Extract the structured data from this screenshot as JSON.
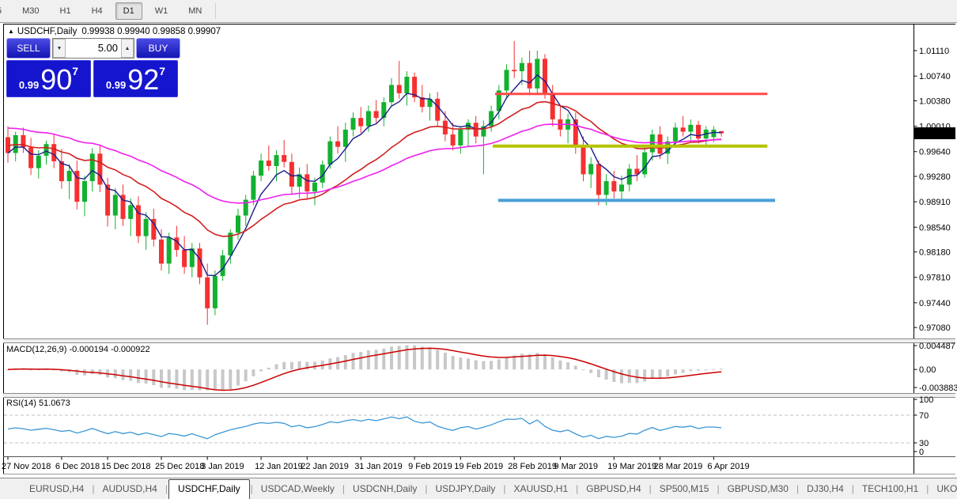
{
  "toolbar": {
    "items": [
      "5",
      "M30",
      "H1",
      "H4",
      "D1",
      "W1",
      "MN"
    ],
    "active": "D1"
  },
  "chart_header": {
    "collapse_icon": "expand-arrow",
    "title": "USDCHF,Daily",
    "values": "0.99938 0.99940 0.99858 0.99907"
  },
  "trade_panel": {
    "sell_label": "SELL",
    "buy_label": "BUY",
    "volume": "5.00",
    "volume_down_icon": "▼",
    "volume_up_icon": "▲",
    "sell_price": {
      "prefix": "0.99",
      "big": "90",
      "sup": "7"
    },
    "buy_price": {
      "prefix": "0.99",
      "big": "92",
      "sup": "7"
    }
  },
  "indicators": {
    "macd": {
      "label": "MACD(12,26,9) -0.000194 -0.000922",
      "axis": [
        "0.004487",
        "0.00",
        "-0.003883"
      ]
    },
    "rsi": {
      "label": "RSI(14) 51.0673",
      "axis": [
        "100",
        "70",
        "30",
        "0"
      ]
    }
  },
  "price_axis": {
    "ticks": [
      "1.01110",
      "1.00740",
      "1.00380",
      "1.00010",
      "0.99640",
      "0.99280",
      "0.98910",
      "0.98540",
      "0.98180",
      "0.97810",
      "0.97440",
      "0.97080"
    ],
    "current": "0.99907"
  },
  "tabs": {
    "items": [
      "EURUSD,H4",
      "AUDUSD,H4",
      "USDCHF,Daily",
      "USDCAD,Weekly",
      "USDCNH,Daily",
      "USDJPY,Daily",
      "XAUUSD,H1",
      "GBPUSD,H4",
      "SP500,M15",
      "GBPUSD,M30",
      "DJ30,H4",
      "TECH100,H1",
      "UKO"
    ],
    "active": "USDCHF,Daily",
    "scroll_left": "◄",
    "scroll_right": "►"
  },
  "chart_data": {
    "type": "candlestick",
    "symbol": "USDCHF",
    "timeframe": "Daily",
    "ohlc_display": {
      "open": 0.99938,
      "high": 0.9994,
      "low": 0.99858,
      "close": 0.99907
    },
    "colors": {
      "bull": "#12b12f",
      "bear": "#f53030",
      "ma_fast": "#1c1c8c",
      "ma_medium": "#d02020",
      "ma_slow": "#f020f0",
      "macd_hist": "#c8c8c8",
      "macd_signal": "#cc0000",
      "rsi_line": "#3a96d6",
      "hline_red": "#ff4a4a",
      "hline_olive": "#b5c400",
      "hline_blue": "#4a9fd8"
    },
    "y_axis_ticks": [
      1.0111,
      1.0074,
      1.0038,
      1.0001,
      0.9964,
      0.9928,
      0.9891,
      0.9854,
      0.9818,
      0.9781,
      0.9744,
      0.9708
    ],
    "current_price": 0.99907,
    "moving_averages": [
      {
        "name": "fast",
        "period": 5,
        "seed_offset": 0.0
      },
      {
        "name": "medium",
        "period": 20,
        "seed_offset": 0.0012
      },
      {
        "name": "slow",
        "period": 42,
        "seed_offset": 0.0038
      }
    ],
    "horizontal_lines": [
      {
        "name": "resistance",
        "price": 1.0048,
        "color_key": "hline_red",
        "width": 3,
        "from_index": 63.5,
        "to_index": 99
      },
      {
        "name": "pivot",
        "price": 0.9972,
        "color_key": "hline_olive",
        "width": 4,
        "from_index": 63.2,
        "to_index": 99
      },
      {
        "name": "support",
        "price": 0.9893,
        "color_key": "hline_blue",
        "width": 4,
        "from_index": 63.9,
        "to_index": 100
      }
    ],
    "macd": {
      "params": [
        12,
        26,
        9
      ],
      "value": -0.000194,
      "signal_value": -0.000922,
      "axis_max": 0.004487,
      "axis_min": -0.003883
    },
    "rsi": {
      "period": 14,
      "value": 51.0673,
      "levels": [
        70,
        30
      ]
    },
    "date_labels": [
      {
        "label": "27 Nov 2018",
        "index": 0
      },
      {
        "label": "6 Dec 2018",
        "index": 7
      },
      {
        "label": "15 Dec 2018",
        "index": 13
      },
      {
        "label": "25 Dec 2018",
        "index": 20
      },
      {
        "label": "3 Jan 2019",
        "index": 26
      },
      {
        "label": "12 Jan 2019",
        "index": 33
      },
      {
        "label": "22 Jan 2019",
        "index": 39
      },
      {
        "label": "31 Jan 2019",
        "index": 46
      },
      {
        "label": "9 Feb 2019",
        "index": 53
      },
      {
        "label": "19 Feb 2019",
        "index": 59
      },
      {
        "label": "28 Feb 2019",
        "index": 66
      },
      {
        "label": "9 Mar 2019",
        "index": 72
      },
      {
        "label": "19 Mar 2019",
        "index": 79
      },
      {
        "label": "28 Mar 2019",
        "index": 85
      },
      {
        "label": "6 Apr 2019",
        "index": 92
      }
    ],
    "candles": [
      [
        0.9985,
        1.0001,
        0.9948,
        0.9962
      ],
      [
        0.9962,
        0.9993,
        0.995,
        0.9988
      ],
      [
        0.9988,
        0.9999,
        0.9962,
        0.997
      ],
      [
        0.997,
        0.9984,
        0.993,
        0.994
      ],
      [
        0.994,
        0.9966,
        0.9925,
        0.9958
      ],
      [
        0.9958,
        0.998,
        0.9945,
        0.9975
      ],
      [
        0.9975,
        0.9989,
        0.994,
        0.995
      ],
      [
        0.995,
        0.9968,
        0.991,
        0.9921
      ],
      [
        0.9921,
        0.9946,
        0.9895,
        0.9936
      ],
      [
        0.9936,
        0.9951,
        0.988,
        0.9891
      ],
      [
        0.9891,
        0.9929,
        0.987,
        0.9921
      ],
      [
        0.9921,
        0.9969,
        0.9906,
        0.9961
      ],
      [
        0.9961,
        0.9973,
        0.9905,
        0.9916
      ],
      [
        0.9916,
        0.9926,
        0.9855,
        0.9871
      ],
      [
        0.9871,
        0.9911,
        0.9851,
        0.9901
      ],
      [
        0.9901,
        0.9916,
        0.9856,
        0.9866
      ],
      [
        0.9866,
        0.9896,
        0.9841,
        0.9886
      ],
      [
        0.9886,
        0.9899,
        0.9831,
        0.9841
      ],
      [
        0.9841,
        0.9876,
        0.9821,
        0.9866
      ],
      [
        0.9866,
        0.9881,
        0.9826,
        0.9836
      ],
      [
        0.9836,
        0.9851,
        0.9791,
        0.9801
      ],
      [
        0.9801,
        0.9846,
        0.9786,
        0.9839
      ],
      [
        0.9839,
        0.9856,
        0.9811,
        0.9821
      ],
      [
        0.9821,
        0.9841,
        0.9786,
        0.9796
      ],
      [
        0.9796,
        0.9831,
        0.9781,
        0.9823
      ],
      [
        0.9823,
        0.9831,
        0.9771,
        0.9781
      ],
      [
        0.9781,
        0.9801,
        0.9712,
        0.9736
      ],
      [
        0.9736,
        0.9791,
        0.9726,
        0.9783
      ],
      [
        0.9783,
        0.9821,
        0.9776,
        0.9813
      ],
      [
        0.9813,
        0.9851,
        0.9801,
        0.9846
      ],
      [
        0.9846,
        0.9881,
        0.9836,
        0.9871
      ],
      [
        0.9871,
        0.9901,
        0.9856,
        0.9894
      ],
      [
        0.9894,
        0.9936,
        0.9886,
        0.9929
      ],
      [
        0.9929,
        0.9961,
        0.9921,
        0.9951
      ],
      [
        0.9951,
        0.9973,
        0.9936,
        0.9943
      ],
      [
        0.9943,
        0.9966,
        0.9921,
        0.9959
      ],
      [
        0.9959,
        0.9981,
        0.9941,
        0.9949
      ],
      [
        0.9949,
        0.9961,
        0.9901,
        0.9913
      ],
      [
        0.9913,
        0.9941,
        0.9896,
        0.9931
      ],
      [
        0.9931,
        0.9946,
        0.9896,
        0.9906
      ],
      [
        0.9906,
        0.9926,
        0.9886,
        0.9919
      ],
      [
        0.9919,
        0.9951,
        0.9911,
        0.9945
      ],
      [
        0.9945,
        0.9986,
        0.9939,
        0.9979
      ],
      [
        0.9979,
        1.0001,
        0.9961,
        0.9971
      ],
      [
        0.9971,
        1.0006,
        0.9949,
        0.9996
      ],
      [
        0.9996,
        1.0021,
        0.9986,
        1.0013
      ],
      [
        1.0013,
        1.0029,
        0.9991,
        1.0001
      ],
      [
        1.0001,
        1.0031,
        0.9993,
        1.0023
      ],
      [
        1.0023,
        1.0039,
        1.0006,
        1.0013
      ],
      [
        1.0013,
        1.0043,
        1.0001,
        1.0036
      ],
      [
        1.0036,
        1.0071,
        1.0029,
        1.0061
      ],
      [
        1.0061,
        1.0096,
        1.0041,
        1.0049
      ],
      [
        1.0049,
        1.0081,
        1.0031,
        1.0073
      ],
      [
        1.0073,
        1.0079,
        1.0036,
        1.0043
      ],
      [
        1.0043,
        1.0061,
        1.0021,
        1.0029
      ],
      [
        1.0029,
        1.0049,
        1.0009,
        1.0041
      ],
      [
        1.0041,
        1.0051,
        1.0001,
        1.0009
      ],
      [
        1.0009,
        1.0023,
        0.9979,
        0.9989
      ],
      [
        0.9989,
        1.0006,
        0.9966,
        0.9973
      ],
      [
        0.9973,
        1.0001,
        0.9961,
        0.9996
      ],
      [
        0.9996,
        1.0011,
        0.9971,
        1.0006
      ],
      [
        1.0006,
        1.0016,
        0.9976,
        0.9986
      ],
      [
        0.9986,
        1.0009,
        0.9931,
        1.0001
      ],
      [
        1.0001,
        1.0031,
        0.9993,
        1.0023
      ],
      [
        1.0023,
        1.0061,
        1.0011,
        1.0053
      ],
      [
        1.0053,
        1.0091,
        1.0041,
        1.0083
      ],
      [
        1.0083,
        1.0125,
        1.0071,
        1.0081
      ],
      [
        1.0081,
        1.0101,
        1.0061,
        1.0093
      ],
      [
        1.0093,
        1.0111,
        1.0046,
        1.0056
      ],
      [
        1.0056,
        1.0111,
        1.0049,
        1.0099
      ],
      [
        1.0099,
        1.0106,
        1.0041,
        1.0049
      ],
      [
        1.0049,
        1.0061,
        1.0001,
        1.0011
      ],
      [
        1.0011,
        1.0031,
        0.9986,
        0.9996
      ],
      [
        0.9996,
        1.0019,
        0.9976,
        1.0011
      ],
      [
        1.0011,
        1.0021,
        0.9961,
        0.9971
      ],
      [
        0.9971,
        0.9986,
        0.9921,
        0.9931
      ],
      [
        0.9931,
        0.9956,
        0.9911,
        0.9946
      ],
      [
        0.9946,
        0.9951,
        0.9886,
        0.9901
      ],
      [
        0.9901,
        0.9931,
        0.9886,
        0.9921
      ],
      [
        0.9921,
        0.9936,
        0.9896,
        0.9906
      ],
      [
        0.9906,
        0.9929,
        0.9891,
        0.9916
      ],
      [
        0.9916,
        0.9946,
        0.9906,
        0.9939
      ],
      [
        0.9939,
        0.9959,
        0.9921,
        0.9931
      ],
      [
        0.9931,
        0.9971,
        0.9926,
        0.9963
      ],
      [
        0.9963,
        0.9996,
        0.9951,
        0.9989
      ],
      [
        0.9989,
        1.0001,
        0.9953,
        0.9961
      ],
      [
        0.9961,
        0.9986,
        0.9946,
        0.9979
      ],
      [
        0.9979,
        1.0006,
        0.9971,
        0.9999
      ],
      [
        0.9999,
        1.0016,
        0.9986,
        0.9993
      ],
      [
        0.9993,
        1.0011,
        0.9981,
        1.0003
      ],
      [
        1.0003,
        1.0009,
        0.9976,
        0.9983
      ],
      [
        0.9983,
        1.0001,
        0.9971,
        0.9996
      ],
      [
        0.9985,
        1.0001,
        0.9978,
        0.9996
      ],
      [
        0.99938,
        0.9994,
        0.99858,
        0.99907
      ]
    ]
  }
}
